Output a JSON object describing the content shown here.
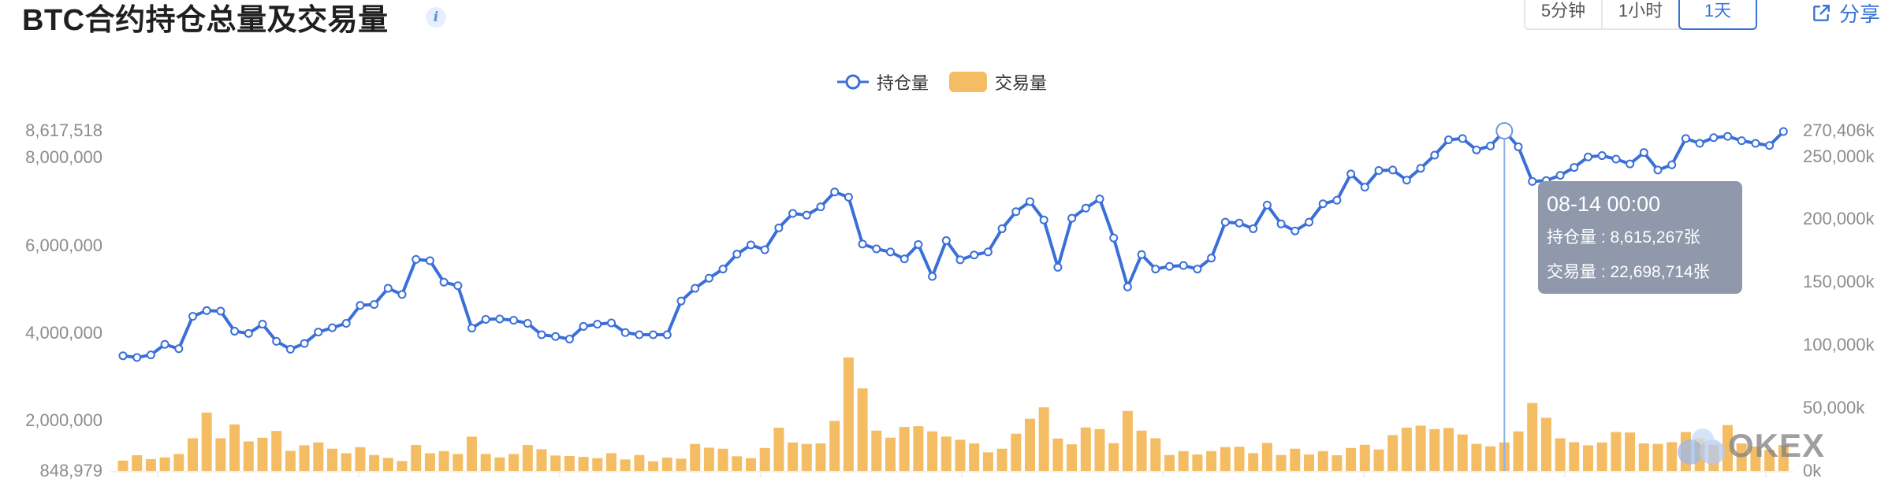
{
  "header": {
    "title": "BTC合约持仓总量及交易量",
    "info_icon": "info-icon",
    "intervals": [
      {
        "label": "5分钟",
        "active": false
      },
      {
        "label": "1小时",
        "active": false
      },
      {
        "label": "1天",
        "active": true
      }
    ],
    "share_label": "分享",
    "share_icon": "external-link-icon"
  },
  "tooltip": {
    "date": "08-14 00:00",
    "open_interest": "持仓量 : 8,615,267张",
    "volume": "交易量 : 22,698,714张"
  },
  "watermark": "OKEX",
  "colors": {
    "line": "#3a6fd8",
    "bar": "#f5bd63",
    "tooltip_bg": "#8f99ab",
    "accent": "#3a74d6"
  },
  "chart_data": {
    "type": "line+bar",
    "title": "BTC合约持仓总量及交易量",
    "legend": {
      "position": "top-center",
      "entries": [
        "持仓量",
        "交易量"
      ]
    },
    "grid": false,
    "highlight_index": 99,
    "highlight_label": "08-14 00:00",
    "left_axis": {
      "ticks": [
        "8,617,518",
        "8,000,000",
        "6,000,000",
        "4,000,000",
        "2,000,000",
        "848,979"
      ],
      "tick_values": [
        8617518,
        8000000,
        6000000,
        4000000,
        2000000,
        848979
      ],
      "range": [
        848979,
        8617518
      ]
    },
    "right_axis": {
      "ticks": [
        "270,406k",
        "250,000k",
        "200,000k",
        "150,000k",
        "100,000k",
        "50,000k",
        "0k"
      ],
      "tick_values": [
        270406000,
        250000000,
        200000000,
        150000000,
        100000000,
        50000000,
        0
      ],
      "range": [
        0,
        270406000
      ]
    },
    "series": [
      {
        "name": "持仓量",
        "type": "line",
        "axis": "left",
        "values": [
          3480000,
          3440000,
          3500000,
          3740000,
          3640000,
          4380000,
          4510000,
          4500000,
          4040000,
          3990000,
          4200000,
          3810000,
          3630000,
          3760000,
          4020000,
          4120000,
          4220000,
          4630000,
          4650000,
          5020000,
          4880000,
          5680000,
          5650000,
          5160000,
          5080000,
          4110000,
          4310000,
          4320000,
          4290000,
          4220000,
          3960000,
          3920000,
          3860000,
          4150000,
          4200000,
          4230000,
          4010000,
          3960000,
          3960000,
          3960000,
          4730000,
          5020000,
          5250000,
          5460000,
          5800000,
          6010000,
          5900000,
          6400000,
          6730000,
          6690000,
          6880000,
          7220000,
          7100000,
          6030000,
          5920000,
          5850000,
          5690000,
          6020000,
          5290000,
          6110000,
          5670000,
          5780000,
          5850000,
          6380000,
          6770000,
          7000000,
          6580000,
          5500000,
          6620000,
          6850000,
          7060000,
          6170000,
          5050000,
          5790000,
          5460000,
          5520000,
          5540000,
          5460000,
          5710000,
          6530000,
          6510000,
          6380000,
          6920000,
          6490000,
          6330000,
          6530000,
          6950000,
          7030000,
          7630000,
          7330000,
          7710000,
          7720000,
          7490000,
          7760000,
          8060000,
          8410000,
          8440000,
          8180000,
          8270000,
          8615267,
          8250000,
          7460000,
          7480000,
          7600000,
          7780000,
          8020000,
          8050000,
          7970000,
          7860000,
          8120000,
          7720000,
          7840000,
          8440000,
          8330000,
          8460000,
          8490000,
          8390000,
          8330000,
          8280000,
          8600000
        ]
      },
      {
        "name": "交易量",
        "type": "bar",
        "axis": "right",
        "values": [
          8300000,
          12500000,
          9400000,
          10800000,
          13500000,
          26000000,
          46400000,
          26000000,
          37000000,
          23500000,
          26400000,
          31800000,
          16000000,
          20400000,
          22700000,
          17700000,
          14100000,
          18900000,
          12700000,
          10400000,
          7900000,
          20600000,
          14100000,
          15800000,
          13500000,
          27300000,
          13500000,
          10800000,
          13500000,
          20600000,
          17300000,
          12300000,
          11900000,
          11200000,
          10200000,
          14200000,
          9200000,
          12700000,
          7700000,
          10600000,
          9800000,
          21500000,
          18500000,
          17700000,
          11700000,
          10200000,
          18300000,
          34400000,
          22700000,
          21500000,
          21900000,
          39800000,
          90200000,
          65600000,
          32100000,
          26500000,
          35000000,
          35600000,
          31500000,
          27300000,
          24800000,
          21900000,
          14800000,
          17700000,
          29600000,
          41500000,
          50600000,
          25800000,
          21200000,
          34600000,
          33300000,
          22100000,
          47700000,
          32100000,
          26000000,
          12700000,
          15800000,
          13100000,
          15800000,
          19000000,
          19200000,
          14200000,
          22300000,
          12700000,
          17700000,
          13100000,
          15800000,
          12500000,
          18300000,
          20800000,
          17100000,
          28500000,
          34400000,
          36000000,
          33300000,
          34200000,
          29000000,
          21500000,
          19600000,
          22698714,
          31500000,
          54000000,
          42300000,
          26000000,
          22900000,
          20400000,
          22700000,
          31000000,
          30600000,
          21900000,
          21500000,
          22900000,
          31000000,
          26000000,
          20800000,
          36500000,
          21900000,
          19400000,
          16700000,
          20600000
        ]
      }
    ]
  }
}
